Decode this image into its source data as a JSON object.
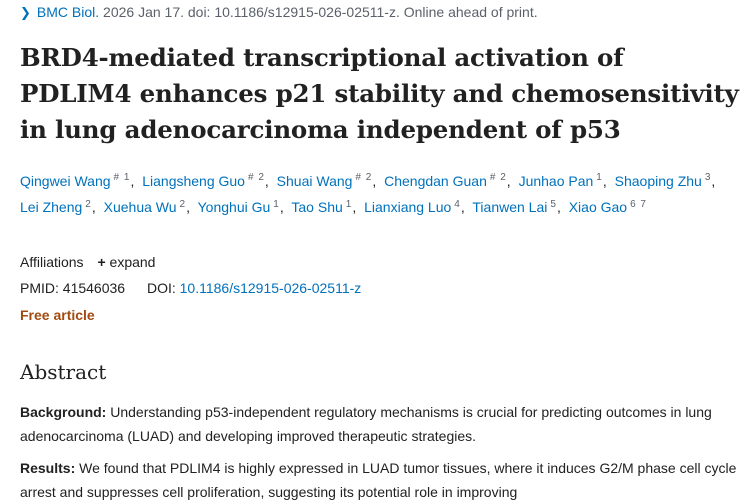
{
  "citation": {
    "journal": "BMC Biol.",
    "details": "2026 Jan 17. doi: 10.1186/s12915-026-02511-z. Online ahead of print."
  },
  "title": "BRD4-mediated transcriptional activation of PDLIM4 enhances p21 stability and chemosensitivity in lung adenocarcinoma independent of p53",
  "authors": [
    {
      "name": "Qingwei Wang",
      "aff": "# 1",
      "sep": ","
    },
    {
      "name": "Liangsheng Guo",
      "aff": "# 2",
      "sep": ","
    },
    {
      "name": "Shuai Wang",
      "aff": "# 2",
      "sep": ","
    },
    {
      "name": "Chengdan Guan",
      "aff": "# 2",
      "sep": ","
    },
    {
      "name": "Junhao Pan",
      "aff": "1",
      "sep": ","
    },
    {
      "name": "Shaoping Zhu",
      "aff": "3",
      "sep": ","
    },
    {
      "name": "Lei Zheng",
      "aff": "2",
      "sep": ","
    },
    {
      "name": "Xuehua Wu",
      "aff": "2",
      "sep": ","
    },
    {
      "name": "Yonghui Gu",
      "aff": "1",
      "sep": ","
    },
    {
      "name": "Tao Shu",
      "aff": "1",
      "sep": ","
    },
    {
      "name": "Lianxiang Luo",
      "aff": "4",
      "sep": ","
    },
    {
      "name": "Tianwen Lai",
      "aff": "5",
      "sep": ","
    },
    {
      "name": "Xiao Gao",
      "aff": "6 7",
      "sep": ""
    }
  ],
  "affiliations": {
    "label": "Affiliations",
    "expand_icon": "+",
    "expand_label": "expand"
  },
  "ids": {
    "pmid_label": "PMID:",
    "pmid": "41546036",
    "doi_label": "DOI:",
    "doi": "10.1186/s12915-026-02511-z"
  },
  "free_article": "Free article",
  "abstract": {
    "heading": "Abstract",
    "background_label": "Background:",
    "background_text": "Understanding p53-independent regulatory mechanisms is crucial for predicting outcomes in lung adenocarcinoma (LUAD) and developing improved therapeutic strategies.",
    "results_label": "Results:",
    "results_text": "We found that PDLIM4 is highly expressed in LUAD tumor tissues, where it induces G2/M phase cell cycle arrest and suppresses cell proliferation, suggesting its potential role in improving"
  }
}
